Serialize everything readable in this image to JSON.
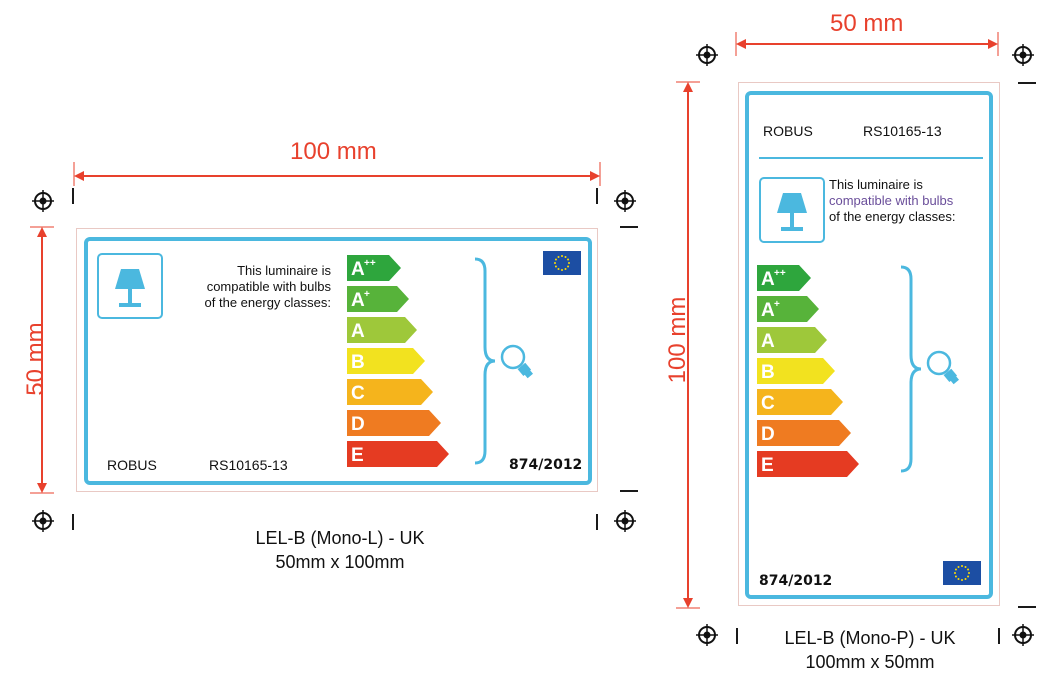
{
  "colors": {
    "dimension": "#e8412d",
    "label_border": "#4bb8df",
    "eu_blue": "#1c4ea3",
    "eu_star": "#ffdd00"
  },
  "energy_classes": [
    {
      "main": "A",
      "sup": "++",
      "color": "#2ea63d"
    },
    {
      "main": "A",
      "sup": "+",
      "color": "#57b33a"
    },
    {
      "main": "A",
      "sup": "",
      "color": "#9ec83a"
    },
    {
      "main": "B",
      "sup": "",
      "color": "#f2e21f"
    },
    {
      "main": "C",
      "sup": "",
      "color": "#f5b41c"
    },
    {
      "main": "D",
      "sup": "",
      "color": "#ef7b21"
    },
    {
      "main": "E",
      "sup": "",
      "color": "#e53b22"
    }
  ],
  "landscape": {
    "width_dim": "100 mm",
    "height_dim": "50 mm",
    "text_line1": "This luminaire is",
    "text_line2": "compatible with bulbs",
    "text_line3": "of the energy classes:",
    "brand": "ROBUS",
    "model": "RS10165-13",
    "regulation": "874/2012",
    "caption_line1": "LEL-B (Mono-L) - UK",
    "caption_line2": "50mm x 100mm"
  },
  "portrait": {
    "width_dim": "50 mm",
    "height_dim": "100 mm",
    "brand": "ROBUS",
    "model": "RS10165-13",
    "text_line1": "This luminaire is",
    "text_line2": "compatible with bulbs",
    "text_line3": "of the energy classes:",
    "regulation": "874/2012",
    "caption_line1": "LEL-B (Mono-P) - UK",
    "caption_line2": "100mm x 50mm"
  }
}
